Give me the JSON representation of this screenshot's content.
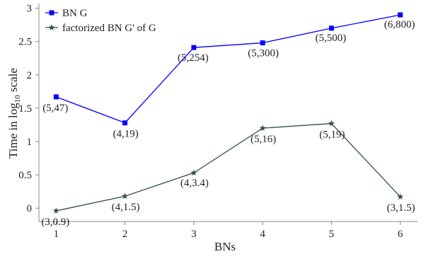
{
  "chart_data": {
    "type": "line",
    "xlabel": "BNs",
    "ylabel": "Time in log",
    "ylabel_sub": "10",
    "ylabel_suffix": " scale",
    "x": [
      1,
      2,
      3,
      4,
      5,
      6
    ],
    "xlim": [
      0.75,
      6.25
    ],
    "ylim": [
      -0.2,
      3.07
    ],
    "yticks": [
      0,
      0.5,
      1,
      1.5,
      2,
      2.5,
      3
    ],
    "ytick_labels": [
      "0",
      "0.5",
      "1",
      "1.5",
      "2",
      "2.5",
      "3"
    ],
    "xtick_labels": [
      "1",
      "2",
      "3",
      "4",
      "5",
      "6"
    ],
    "grid": false,
    "legend_position": "top-left",
    "series": [
      {
        "name": "BN G",
        "color": "#0000ff",
        "marker": "square",
        "values": [
          1.67,
          1.28,
          2.41,
          2.48,
          2.7,
          2.9
        ],
        "labels": [
          "(5,47)",
          "(4,19)",
          "(5,254)",
          "(5,300)",
          "(5,500)",
          "(6,800)"
        ]
      },
      {
        "name": "factorized BN G' of G",
        "color": "#2f4f4f",
        "marker": "star",
        "values": [
          -0.04,
          0.18,
          0.53,
          1.2,
          1.27,
          0.17
        ],
        "labels": [
          "(3,0.9)",
          "(4,1.5)",
          "(4,3.4)",
          "(5,16)",
          "(5,19)",
          "(3,1.5)"
        ]
      }
    ]
  }
}
